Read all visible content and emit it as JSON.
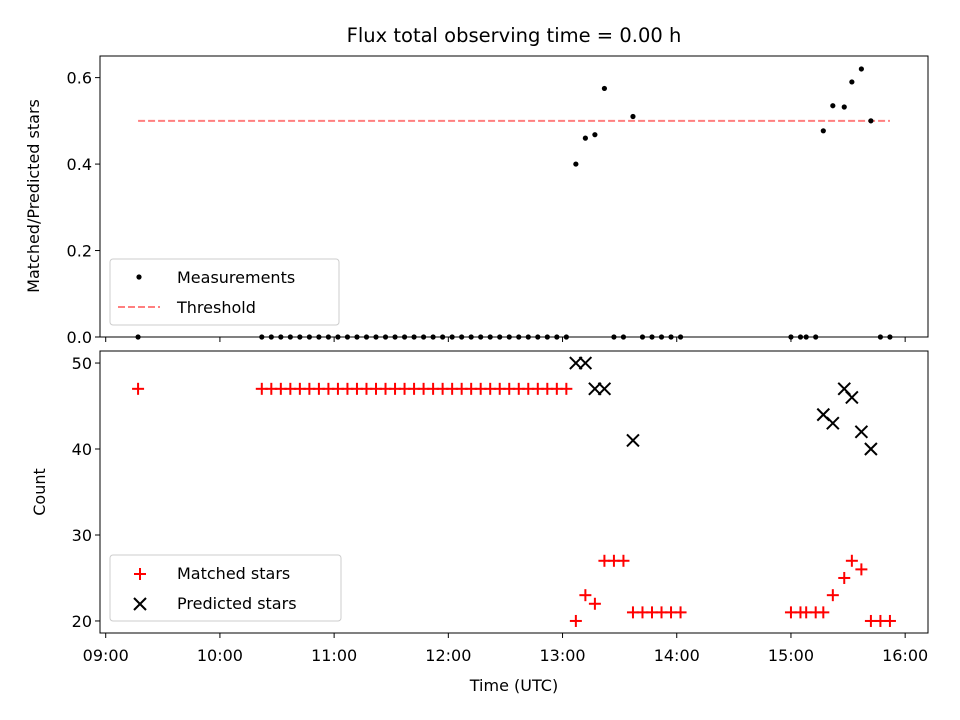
{
  "chart_data": [
    {
      "type": "scatter",
      "title": "Flux total observing time = 0.00 h",
      "ylabel": "Matched/Predicted stars",
      "ylim": [
        0,
        0.65
      ],
      "yticks": [
        "0.0",
        "0.2",
        "0.4",
        "0.6"
      ],
      "legend": "lower-left",
      "series": [
        {
          "name": "Measurements",
          "marker": "dot",
          "color": "#000000",
          "points": [
            [
              "09:17",
              0.0
            ],
            [
              "10:22",
              0.0
            ],
            [
              "10:27",
              0.0
            ],
            [
              "10:32",
              0.0
            ],
            [
              "10:37",
              0.0
            ],
            [
              "10:42",
              0.0
            ],
            [
              "10:47",
              0.0
            ],
            [
              "10:52",
              0.0
            ],
            [
              "10:57",
              0.0
            ],
            [
              "11:02",
              0.0
            ],
            [
              "11:07",
              0.0
            ],
            [
              "11:12",
              0.0
            ],
            [
              "11:17",
              0.0
            ],
            [
              "11:22",
              0.0
            ],
            [
              "11:27",
              0.0
            ],
            [
              "11:32",
              0.0
            ],
            [
              "11:37",
              0.0
            ],
            [
              "11:42",
              0.0
            ],
            [
              "11:47",
              0.0
            ],
            [
              "11:52",
              0.0
            ],
            [
              "11:57",
              0.0
            ],
            [
              "12:02",
              0.0
            ],
            [
              "12:07",
              0.0
            ],
            [
              "12:12",
              0.0
            ],
            [
              "12:17",
              0.0
            ],
            [
              "12:22",
              0.0
            ],
            [
              "12:27",
              0.0
            ],
            [
              "12:32",
              0.0
            ],
            [
              "12:37",
              0.0
            ],
            [
              "12:42",
              0.0
            ],
            [
              "12:47",
              0.0
            ],
            [
              "12:52",
              0.0
            ],
            [
              "12:57",
              0.0
            ],
            [
              "13:02",
              0.0
            ],
            [
              "13:07",
              0.4
            ],
            [
              "13:12",
              0.46
            ],
            [
              "13:17",
              0.468
            ],
            [
              "13:22",
              0.575
            ],
            [
              "13:27",
              0.0
            ],
            [
              "13:32",
              0.0
            ],
            [
              "13:37",
              0.51
            ],
            [
              "13:42",
              0.0
            ],
            [
              "13:47",
              0.0
            ],
            [
              "13:52",
              0.0
            ],
            [
              "13:57",
              0.0
            ],
            [
              "14:02",
              0.0
            ],
            [
              "15:00",
              0.0
            ],
            [
              "15:05",
              0.0
            ],
            [
              "15:08",
              0.0
            ],
            [
              "15:13",
              0.0
            ],
            [
              "15:17",
              0.477
            ],
            [
              "15:22",
              0.535
            ],
            [
              "15:28",
              0.532
            ],
            [
              "15:32",
              0.59
            ],
            [
              "15:37",
              0.62
            ],
            [
              "15:42",
              0.5
            ],
            [
              "15:47",
              0.0
            ],
            [
              "15:52",
              0.0
            ]
          ]
        },
        {
          "name": "Threshold",
          "type": "line",
          "dash": true,
          "color": "#ff7f7f",
          "points": [
            [
              "09:17",
              0.5
            ],
            [
              "15:52",
              0.5
            ]
          ]
        }
      ]
    },
    {
      "type": "scatter",
      "xlabel": "Time (UTC)",
      "ylabel": "Count",
      "ylim": [
        18.6,
        51.4
      ],
      "yticks": [
        "20",
        "30",
        "40",
        "50"
      ],
      "xticks": [
        "09:00",
        "10:00",
        "11:00",
        "12:00",
        "13:00",
        "14:00",
        "15:00",
        "16:00"
      ],
      "xlim": [
        "08:57",
        "16:12"
      ],
      "legend": "lower-left",
      "series": [
        {
          "name": "Matched stars",
          "marker": "plus",
          "color": "#ff0000",
          "points": [
            [
              "09:17",
              47
            ],
            [
              "10:22",
              47
            ],
            [
              "10:27",
              47
            ],
            [
              "10:32",
              47
            ],
            [
              "10:37",
              47
            ],
            [
              "10:42",
              47
            ],
            [
              "10:47",
              47
            ],
            [
              "10:52",
              47
            ],
            [
              "10:57",
              47
            ],
            [
              "11:02",
              47
            ],
            [
              "11:07",
              47
            ],
            [
              "11:12",
              47
            ],
            [
              "11:17",
              47
            ],
            [
              "11:22",
              47
            ],
            [
              "11:27",
              47
            ],
            [
              "11:32",
              47
            ],
            [
              "11:37",
              47
            ],
            [
              "11:42",
              47
            ],
            [
              "11:47",
              47
            ],
            [
              "11:52",
              47
            ],
            [
              "11:57",
              47
            ],
            [
              "12:02",
              47
            ],
            [
              "12:07",
              47
            ],
            [
              "12:12",
              47
            ],
            [
              "12:17",
              47
            ],
            [
              "12:22",
              47
            ],
            [
              "12:27",
              47
            ],
            [
              "12:32",
              47
            ],
            [
              "12:37",
              47
            ],
            [
              "12:42",
              47
            ],
            [
              "12:47",
              47
            ],
            [
              "12:52",
              47
            ],
            [
              "12:57",
              47
            ],
            [
              "13:02",
              47
            ],
            [
              "13:07",
              20
            ],
            [
              "13:12",
              23
            ],
            [
              "13:17",
              22
            ],
            [
              "13:22",
              27
            ],
            [
              "13:27",
              27
            ],
            [
              "13:32",
              27
            ],
            [
              "13:37",
              21
            ],
            [
              "13:42",
              21
            ],
            [
              "13:47",
              21
            ],
            [
              "13:52",
              21
            ],
            [
              "13:57",
              21
            ],
            [
              "14:02",
              21
            ],
            [
              "15:00",
              21
            ],
            [
              "15:05",
              21
            ],
            [
              "15:08",
              21
            ],
            [
              "15:13",
              21
            ],
            [
              "15:17",
              21
            ],
            [
              "15:22",
              23
            ],
            [
              "15:28",
              25
            ],
            [
              "15:32",
              27
            ],
            [
              "15:37",
              26
            ],
            [
              "15:42",
              20
            ],
            [
              "15:47",
              20
            ],
            [
              "15:52",
              20
            ]
          ]
        },
        {
          "name": "Predicted stars",
          "marker": "x",
          "color": "#000000",
          "points": [
            [
              "13:07",
              50
            ],
            [
              "13:12",
              50
            ],
            [
              "13:17",
              47
            ],
            [
              "13:22",
              47
            ],
            [
              "13:37",
              41
            ],
            [
              "15:17",
              44
            ],
            [
              "15:22",
              43
            ],
            [
              "15:28",
              47
            ],
            [
              "15:32",
              46
            ],
            [
              "15:37",
              42
            ],
            [
              "15:42",
              40
            ]
          ]
        }
      ]
    }
  ]
}
